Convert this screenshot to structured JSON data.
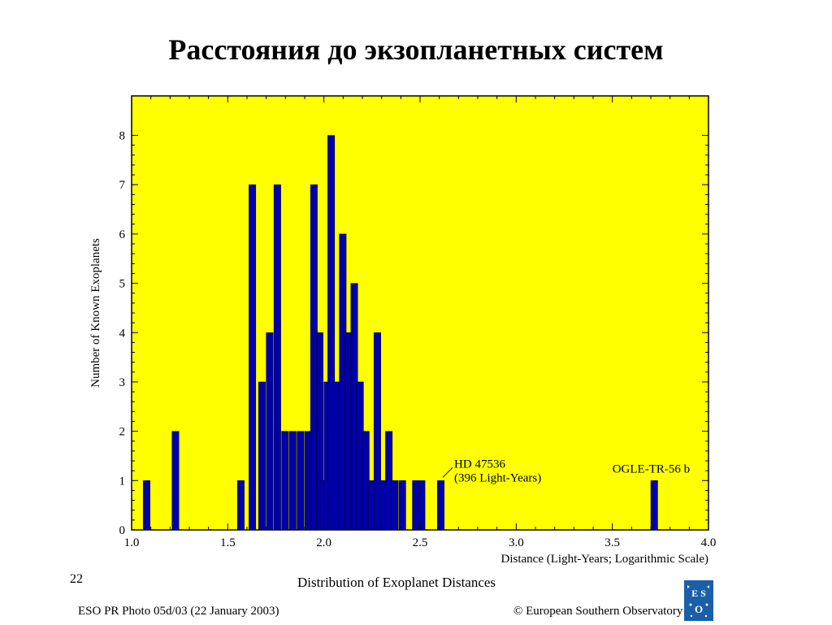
{
  "slide": {
    "title": "Расстояния до экзопланетных систем",
    "number": "22",
    "photo_credit": "ESO PR Photo 05d/03 (22 January 2003)",
    "copyright": "© European Southern Observatory",
    "logo_text": "ESO"
  },
  "chart_data": {
    "type": "bar",
    "title": "Distribution of Exoplanet Distances",
    "xlabel": "Distance (Light-Years; Logarithmic Scale)",
    "ylabel": "Number of Known Exoplanets",
    "xlim": [
      1.0,
      4.0
    ],
    "ylim": [
      0,
      8.8
    ],
    "xticks": [
      "1.0",
      "1.5",
      "2.0",
      "2.5",
      "3.0",
      "3.5",
      "4.0"
    ],
    "yticks": [
      "0",
      "1",
      "2",
      "3",
      "4",
      "5",
      "6",
      "7",
      "8"
    ],
    "bin_width": 0.04,
    "background_color": "#ffff00",
    "bar_color": "#0000aa",
    "bins": [
      {
        "x": 1.08,
        "y": 1
      },
      {
        "x": 1.23,
        "y": 2
      },
      {
        "x": 1.57,
        "y": 1
      },
      {
        "x": 1.63,
        "y": 7
      },
      {
        "x": 1.68,
        "y": 3
      },
      {
        "x": 1.72,
        "y": 4
      },
      {
        "x": 1.76,
        "y": 7
      },
      {
        "x": 1.8,
        "y": 2
      },
      {
        "x": 1.84,
        "y": 2
      },
      {
        "x": 1.88,
        "y": 2
      },
      {
        "x": 1.92,
        "y": 2
      },
      {
        "x": 1.95,
        "y": 7
      },
      {
        "x": 1.98,
        "y": 4
      },
      {
        "x": 2.0,
        "y": 1
      },
      {
        "x": 2.02,
        "y": 3
      },
      {
        "x": 2.04,
        "y": 8
      },
      {
        "x": 2.07,
        "y": 3
      },
      {
        "x": 2.1,
        "y": 6
      },
      {
        "x": 2.13,
        "y": 4
      },
      {
        "x": 2.16,
        "y": 5
      },
      {
        "x": 2.19,
        "y": 3
      },
      {
        "x": 2.22,
        "y": 2
      },
      {
        "x": 2.25,
        "y": 1
      },
      {
        "x": 2.28,
        "y": 4
      },
      {
        "x": 2.31,
        "y": 1
      },
      {
        "x": 2.34,
        "y": 2
      },
      {
        "x": 2.37,
        "y": 1
      },
      {
        "x": 2.41,
        "y": 1
      },
      {
        "x": 2.48,
        "y": 1
      },
      {
        "x": 2.51,
        "y": 1
      },
      {
        "x": 2.61,
        "y": 1
      },
      {
        "x": 3.72,
        "y": 1
      }
    ],
    "annotations": [
      {
        "lines": [
          "HD 47536",
          "(396 Light-Years)"
        ],
        "x": 2.61,
        "y": 1
      },
      {
        "lines": [
          "OGLE-TR-56 b"
        ],
        "x": 3.72,
        "y": 1
      }
    ]
  }
}
